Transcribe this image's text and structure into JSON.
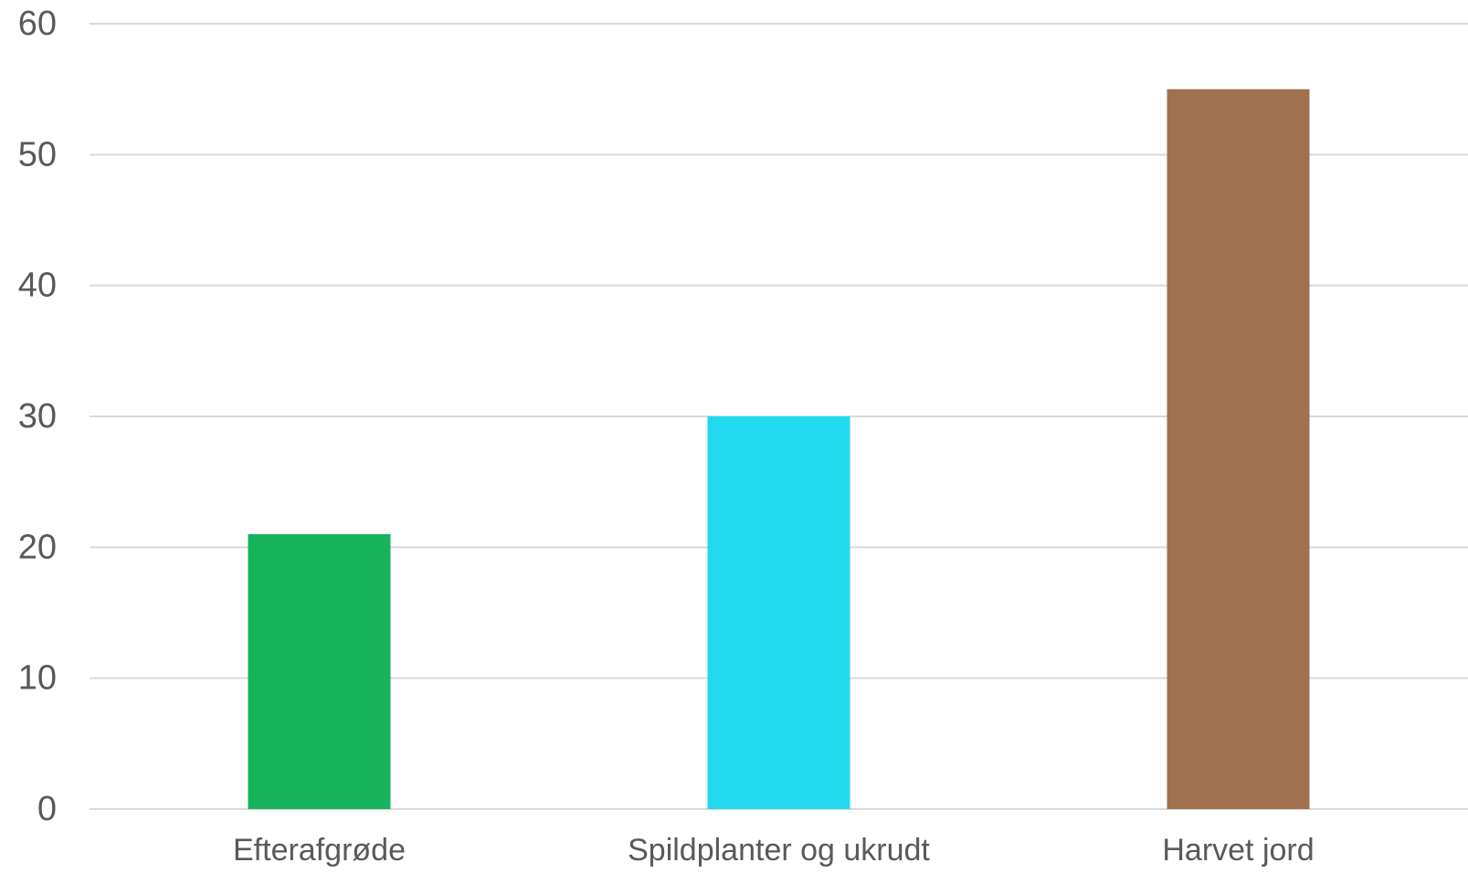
{
  "chart_data": {
    "type": "bar",
    "title": "",
    "xlabel": "",
    "ylabel": "",
    "categories": [
      "Efterafgrøde",
      "Spildplanter og ukrudt",
      "Harvet jord"
    ],
    "values": [
      21,
      30,
      55
    ],
    "colors": [
      "#16b35c",
      "#22d8ee",
      "#a07250"
    ],
    "ylim": [
      0,
      60
    ],
    "yticks": [
      0,
      10,
      20,
      30,
      40,
      50,
      60
    ],
    "grid": true,
    "legend": "none"
  }
}
